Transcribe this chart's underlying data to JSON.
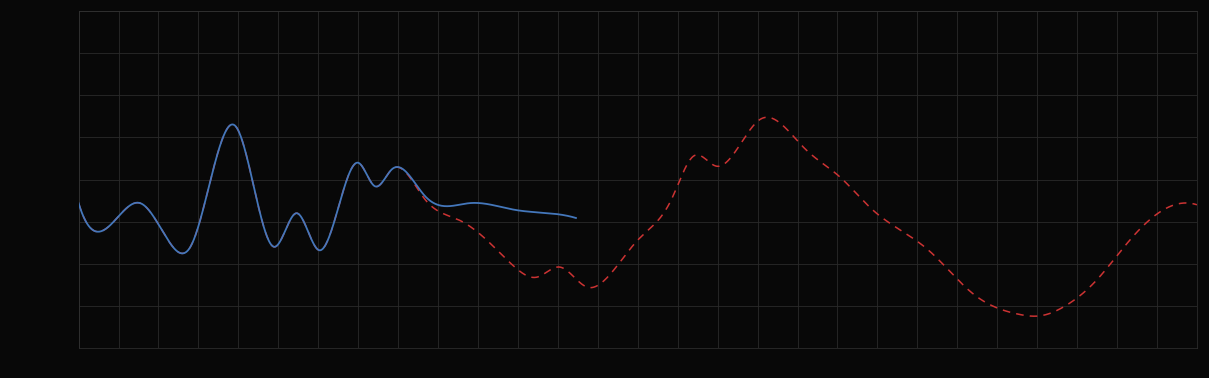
{
  "background_color": "#080808",
  "plot_bg_color": "#080808",
  "grid_color": "#2a2a2a",
  "blue_line_color": "#4477bb",
  "red_line_color": "#cc3333",
  "figsize": [
    12.09,
    3.78
  ],
  "dpi": 100,
  "n_xgrid": 28,
  "n_ygrid": 8
}
